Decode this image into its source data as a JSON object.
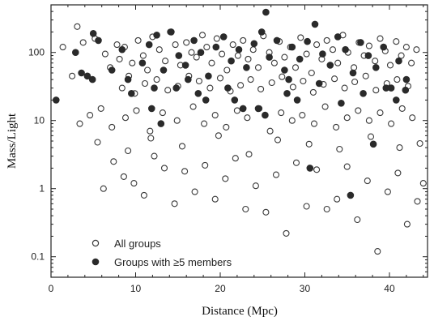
{
  "chart_data": {
    "type": "scatter",
    "xlabel": "Distance (Mpc)",
    "ylabel": "Mass/Light",
    "xlim": [
      0,
      44.5
    ],
    "ylim": [
      0.05,
      500
    ],
    "yscale": "log",
    "xticks": [
      0,
      10,
      20,
      30,
      40
    ],
    "yticks": [
      0.1,
      1,
      10,
      100
    ],
    "ytick_labels": [
      "0.1",
      "1",
      "10",
      "100"
    ],
    "grid": false,
    "legend": {
      "position": "bottom-left",
      "entries": [
        {
          "label": "All groups",
          "marker": "open-circle"
        },
        {
          "label": "Groups with ≥5 members",
          "marker": "filled-circle"
        }
      ]
    },
    "series": [
      {
        "name": "All groups",
        "marker": "open-circle",
        "color": "#3a3a3a",
        "x": [
          3.1,
          3.8,
          5.2,
          6.4,
          7.0,
          7.8,
          8.1,
          8.7,
          9.2,
          9.6,
          10.3,
          10.9,
          11.4,
          12.0,
          12.8,
          13.5,
          14.1,
          14.7,
          15.3,
          16.0,
          16.6,
          17.2,
          17.9,
          18.4,
          19.0,
          19.6,
          20.2,
          20.8,
          21.5,
          22.1,
          22.7,
          23.3,
          23.9,
          24.5,
          25.1,
          25.8,
          26.4,
          27.0,
          27.6,
          28.3,
          28.9,
          29.5,
          30.2,
          30.8,
          31.4,
          32.0,
          32.6,
          33.3,
          33.9,
          34.5,
          35.1,
          35.8,
          36.4,
          37.0,
          37.6,
          38.3,
          38.9,
          39.5,
          40.1,
          40.8,
          41.4,
          42.0,
          42.6,
          43.2,
          1.4,
          2.5,
          8.4,
          9.9,
          11.1,
          12.5,
          13.8,
          15.0,
          16.3,
          17.5,
          18.8,
          20.0,
          21.2,
          22.4,
          23.6,
          24.8,
          26.1,
          27.3,
          28.6,
          29.8,
          31.0,
          32.2,
          33.5,
          34.7,
          35.9,
          37.2,
          38.4,
          39.7,
          40.9,
          42.2,
          3.4,
          4.6,
          5.9,
          7.2,
          8.8,
          10.1,
          11.7,
          13.2,
          14.9,
          16.8,
          18.1,
          19.4,
          20.7,
          22.0,
          23.2,
          24.6,
          25.9,
          27.2,
          28.5,
          29.7,
          31.1,
          32.4,
          33.7,
          35.0,
          36.3,
          37.6,
          38.9,
          40.2,
          41.5,
          42.7,
          6.2,
          7.4,
          8.6,
          9.8,
          11.0,
          12.2,
          13.4,
          14.6,
          15.8,
          17.0,
          18.2,
          19.4,
          20.6,
          21.8,
          23.0,
          24.2,
          25.4,
          26.6,
          27.8,
          29.0,
          30.2,
          31.4,
          32.6,
          33.8,
          35.0,
          36.2,
          37.4,
          38.6,
          39.8,
          41.0,
          42.1,
          43.3,
          44.0,
          5.5,
          9.1,
          11.8,
          15.5,
          19.8,
          23.4,
          26.8,
          30.5,
          34.1,
          37.8,
          41.2,
          43.6
        ],
        "y": [
          240,
          140,
          160,
          95,
          60,
          130,
          80,
          120,
          45,
          70,
          150,
          90,
          55,
          170,
          110,
          75,
          200,
          130,
          65,
          140,
          100,
          85,
          180,
          120,
          70,
          160,
          95,
          55,
          130,
          90,
          150,
          80,
          110,
          60,
          175,
          100,
          70,
          145,
          85,
          120,
          60,
          165,
          95,
          50,
          130,
          80,
          150,
          110,
          70,
          180,
          100,
          60,
          140,
          90,
          125,
          75,
          160,
          105,
          65,
          145,
          90,
          120,
          70,
          110,
          120,
          45,
          30,
          25,
          35,
          40,
          28,
          32,
          45,
          38,
          30,
          42,
          27,
          33,
          40,
          29,
          36,
          44,
          31,
          38,
          26,
          34,
          41,
          30,
          37,
          45,
          28,
          35,
          40,
          32,
          9,
          12,
          15,
          8,
          11,
          14,
          7,
          13,
          10,
          16,
          9,
          12,
          8,
          14,
          11,
          15,
          7,
          13,
          10,
          12,
          9,
          16,
          8,
          11,
          14,
          10,
          13,
          9,
          15,
          11,
          1.0,
          2.5,
          1.5,
          1.2,
          0.8,
          3.0,
          2.0,
          0.6,
          1.8,
          0.9,
          2.2,
          0.7,
          1.4,
          2.8,
          0.5,
          1.1,
          0.45,
          1.6,
          0.22,
          2.4,
          0.55,
          1.9,
          0.5,
          0.7,
          2.1,
          0.35,
          1.3,
          0.12,
          0.9,
          1.7,
          0.3,
          0.65,
          1.2,
          4.8,
          3.6,
          5.5,
          4.2,
          6.0,
          3.2,
          5.2,
          4.5,
          3.8,
          5.8,
          4.0,
          4.6
        ]
      },
      {
        "name": "Groups with ≥5 members",
        "marker": "filled-circle",
        "color": "#2a2a2a",
        "x": [
          0.6,
          2.9,
          3.6,
          4.3,
          5.0,
          5.6,
          7.2,
          8.4,
          9.1,
          10.8,
          11.6,
          12.5,
          13.3,
          14.2,
          15.1,
          15.9,
          16.9,
          17.7,
          18.6,
          19.5,
          20.4,
          21.3,
          22.2,
          23.1,
          24.0,
          24.9,
          25.4,
          25.8,
          26.7,
          27.6,
          28.5,
          29.4,
          30.3,
          31.2,
          32.1,
          33.0,
          33.9,
          34.8,
          35.7,
          36.6,
          37.5,
          38.4,
          39.3,
          40.2,
          41.1,
          42.0,
          11.9,
          13.0,
          16.2,
          18.3,
          20.9,
          22.7,
          25.3,
          27.9,
          29.1,
          31.7,
          34.3,
          36.9,
          39.6,
          41.9,
          4.9,
          9.5,
          12.2,
          14.8,
          17.4,
          21.7,
          24.5,
          28.1,
          30.6,
          35.4,
          38.1,
          40.8
        ],
        "y": [
          20,
          100,
          50,
          45,
          190,
          150,
          55,
          110,
          40,
          70,
          130,
          180,
          55,
          200,
          90,
          65,
          150,
          100,
          45,
          120,
          170,
          75,
          110,
          60,
          135,
          200,
          390,
          85,
          150,
          55,
          120,
          80,
          145,
          260,
          95,
          65,
          170,
          110,
          50,
          140,
          90,
          60,
          120,
          30,
          75,
          40,
          15,
          9,
          40,
          20,
          30,
          15,
          12,
          25,
          20,
          35,
          18,
          25,
          30,
          28,
          40,
          25,
          30,
          30,
          25,
          20,
          15,
          40,
          2,
          0.8,
          4.5,
          20
        ]
      }
    ]
  }
}
